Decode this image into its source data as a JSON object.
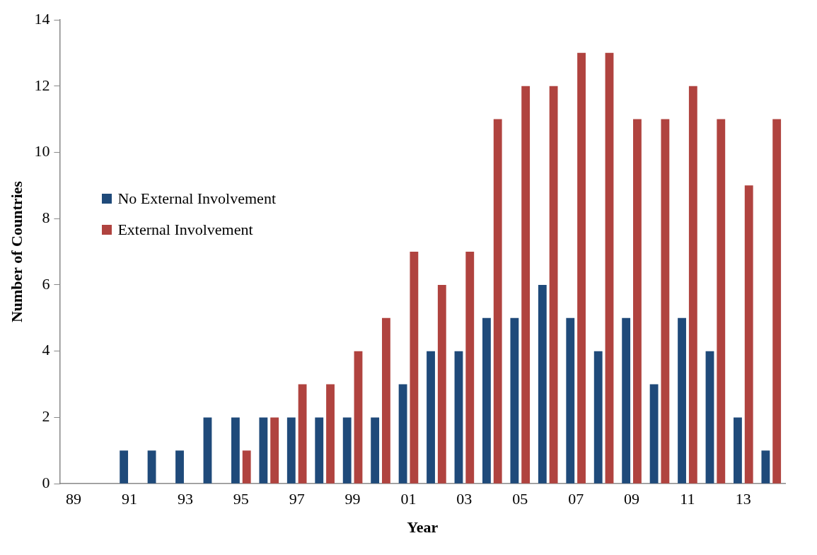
{
  "chart_data": {
    "type": "bar",
    "xlabel": "Year",
    "ylabel": "Number of Countries",
    "categories": [
      "89",
      null,
      "91",
      null,
      "93",
      null,
      "95",
      null,
      "97",
      null,
      "99",
      null,
      "01",
      null,
      "03",
      null,
      "05",
      null,
      "07",
      null,
      "09",
      null,
      "11",
      null,
      "13",
      null
    ],
    "series": [
      {
        "name": "No External Involvement",
        "color": "#1f4a7a",
        "values": [
          0,
          0,
          1,
          1,
          1,
          2,
          2,
          2,
          2,
          2,
          2,
          2,
          3,
          4,
          4,
          5,
          5,
          6,
          5,
          4,
          5,
          3,
          5,
          4,
          2,
          1
        ]
      },
      {
        "name": "External Involvement",
        "color": "#b0433f",
        "values": [
          0,
          0,
          0,
          0,
          0,
          0,
          1,
          2,
          3,
          3,
          4,
          5,
          7,
          6,
          7,
          11,
          12,
          12,
          13,
          13,
          11,
          11,
          12,
          11,
          9,
          11
        ]
      }
    ],
    "ylim": [
      0,
      14
    ],
    "yticks": [
      0,
      2,
      4,
      6,
      8,
      10,
      12,
      14
    ],
    "grid": false,
    "legend": "left"
  }
}
